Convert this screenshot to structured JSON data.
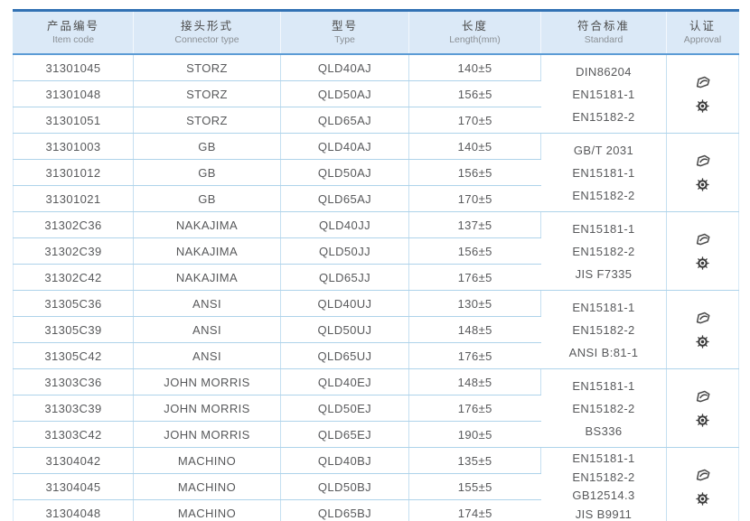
{
  "table": {
    "columns": [
      {
        "zh": "产品编号",
        "en": "Item code"
      },
      {
        "zh": "接头形式",
        "en": "Connector type"
      },
      {
        "zh": "型号",
        "en": "Type"
      },
      {
        "zh": "长度",
        "en": "Length(mm)"
      },
      {
        "zh": "符合标准",
        "en": "Standard"
      },
      {
        "zh": "认证",
        "en": "Approval"
      }
    ],
    "groups": [
      {
        "rows": [
          {
            "item_code": "31301045",
            "connector_type": "STORZ",
            "type": "QLD40AJ",
            "length": "140±5"
          },
          {
            "item_code": "31301048",
            "connector_type": "STORZ",
            "type": "QLD50AJ",
            "length": "156±5"
          },
          {
            "item_code": "31301051",
            "connector_type": "STORZ",
            "type": "QLD65AJ",
            "length": "170±5"
          }
        ],
        "standards": [
          "DIN86204",
          "EN15181-1",
          "EN15182-2"
        ],
        "approval_icons": [
          "certificate-icon",
          "wheelmark-icon"
        ]
      },
      {
        "rows": [
          {
            "item_code": "31301003",
            "connector_type": "GB",
            "type": "QLD40AJ",
            "length": "140±5"
          },
          {
            "item_code": "31301012",
            "connector_type": "GB",
            "type": "QLD50AJ",
            "length": "156±5"
          },
          {
            "item_code": "31301021",
            "connector_type": "GB",
            "type": "QLD65AJ",
            "length": "170±5"
          }
        ],
        "standards": [
          "GB/T 2031",
          "EN15181-1",
          "EN15182-2"
        ],
        "approval_icons": [
          "certificate-icon",
          "wheelmark-icon"
        ]
      },
      {
        "rows": [
          {
            "item_code": "31302C36",
            "connector_type": "NAKAJIMA",
            "type": "QLD40JJ",
            "length": "137±5"
          },
          {
            "item_code": "31302C39",
            "connector_type": "NAKAJIMA",
            "type": "QLD50JJ",
            "length": "156±5"
          },
          {
            "item_code": "31302C42",
            "connector_type": "NAKAJIMA",
            "type": "QLD65JJ",
            "length": "176±5"
          }
        ],
        "standards": [
          "EN15181-1",
          "EN15182-2",
          "JIS F7335"
        ],
        "approval_icons": [
          "certificate-icon",
          "wheelmark-icon"
        ]
      },
      {
        "rows": [
          {
            "item_code": "31305C36",
            "connector_type": "ANSI",
            "type": "QLD40UJ",
            "length": "130±5"
          },
          {
            "item_code": "31305C39",
            "connector_type": "ANSI",
            "type": "QLD50UJ",
            "length": "148±5"
          },
          {
            "item_code": "31305C42",
            "connector_type": "ANSI",
            "type": "QLD65UJ",
            "length": "176±5"
          }
        ],
        "standards": [
          "EN15181-1",
          "EN15182-2",
          "ANSI B:81-1"
        ],
        "approval_icons": [
          "certificate-icon",
          "wheelmark-icon"
        ]
      },
      {
        "rows": [
          {
            "item_code": "31303C36",
            "connector_type": "JOHN MORRIS",
            "type": "QLD40EJ",
            "length": "148±5"
          },
          {
            "item_code": "31303C39",
            "connector_type": "JOHN MORRIS",
            "type": "QLD50EJ",
            "length": "176±5"
          },
          {
            "item_code": "31303C42",
            "connector_type": "JOHN MORRIS",
            "type": "QLD65EJ",
            "length": "190±5"
          }
        ],
        "standards": [
          "EN15181-1",
          "EN15182-2",
          "BS336"
        ],
        "approval_icons": [
          "certificate-icon",
          "wheelmark-icon"
        ]
      },
      {
        "rows": [
          {
            "item_code": "31304042",
            "connector_type": "MACHINO",
            "type": "QLD40BJ",
            "length": "135±5"
          },
          {
            "item_code": "31304045",
            "connector_type": "MACHINO",
            "type": "QLD50BJ",
            "length": "155±5"
          },
          {
            "item_code": "31304048",
            "connector_type": "MACHINO",
            "type": "QLD65BJ",
            "length": "174±5"
          }
        ],
        "standards": [
          "EN15181-1",
          "EN15182-2",
          "GB12514.3",
          "JIS B9911"
        ],
        "approval_icons": [
          "certificate-icon",
          "wheelmark-icon"
        ]
      }
    ]
  },
  "colors": {
    "outer_border": "#3272b4",
    "header_background": "#dbe9f7",
    "header_underline": "#5b9bd5",
    "grid_line": "#aed3ea",
    "body_text": "#58595b",
    "header_text": "#4a4a4a",
    "header_subtext": "#8a8f94"
  }
}
